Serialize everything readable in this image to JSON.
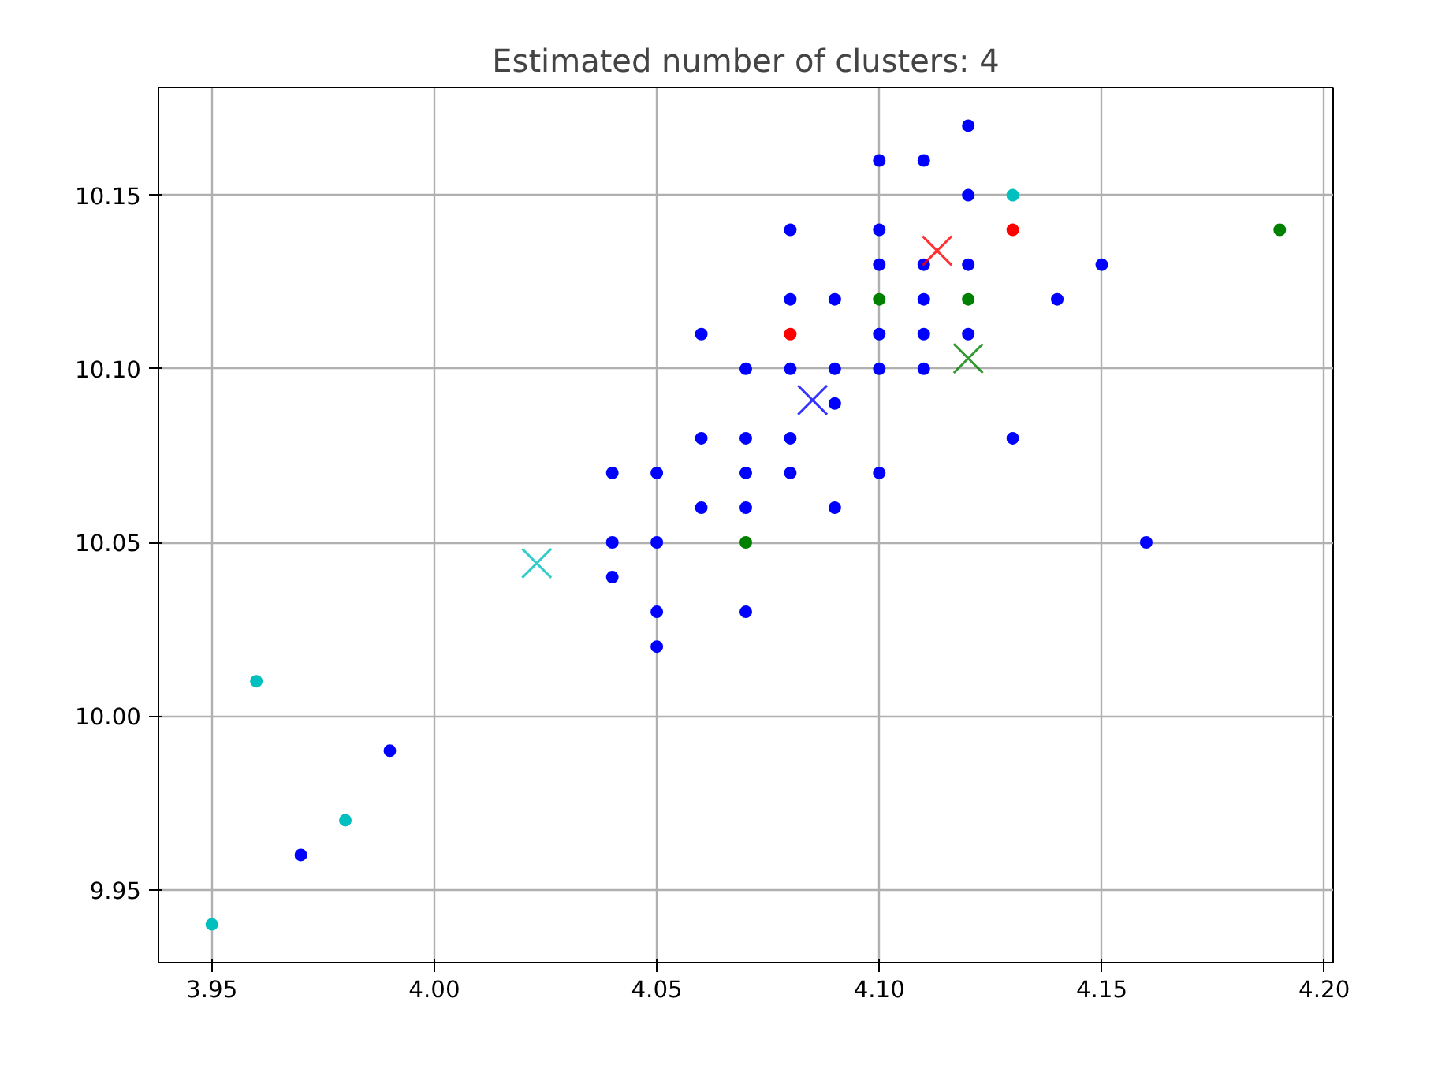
{
  "chart_data": {
    "type": "scatter",
    "title": "Estimated number of clusters: 4",
    "xlim": [
      3.938,
      4.202
    ],
    "ylim": [
      9.929,
      10.181
    ],
    "xticks": [
      {
        "value": 3.95,
        "label": "3.95"
      },
      {
        "value": 4.0,
        "label": "4.00"
      },
      {
        "value": 4.05,
        "label": "4.05"
      },
      {
        "value": 4.1,
        "label": "4.10"
      },
      {
        "value": 4.15,
        "label": "4.15"
      },
      {
        "value": 4.2,
        "label": "4.20"
      }
    ],
    "yticks": [
      {
        "value": 9.95,
        "label": "9.95"
      },
      {
        "value": 10.0,
        "label": "10.00"
      },
      {
        "value": 10.05,
        "label": "10.05"
      },
      {
        "value": 10.1,
        "label": "10.10"
      },
      {
        "value": 10.15,
        "label": "10.15"
      }
    ],
    "grid": true,
    "marker": "circle",
    "series": [
      {
        "color": "#0000ff",
        "x": [
          3.97,
          3.99,
          4.04,
          4.04,
          4.04,
          4.05,
          4.05,
          4.05,
          4.05,
          4.06,
          4.06,
          4.06,
          4.07,
          4.07,
          4.07,
          4.07,
          4.07,
          4.08,
          4.08,
          4.08,
          4.08,
          4.08,
          4.09,
          4.09,
          4.09,
          4.09,
          4.1,
          4.1,
          4.1,
          4.1,
          4.1,
          4.1,
          4.11,
          4.11,
          4.11,
          4.11,
          4.11,
          4.12,
          4.12,
          4.12,
          4.12,
          4.13,
          4.14,
          4.15,
          4.16
        ],
        "values": [
          9.96,
          9.99,
          10.07,
          10.05,
          10.04,
          10.07,
          10.05,
          10.03,
          10.02,
          10.11,
          10.08,
          10.06,
          10.1,
          10.08,
          10.07,
          10.06,
          10.03,
          10.14,
          10.12,
          10.1,
          10.08,
          10.07,
          10.12,
          10.1,
          10.09,
          10.06,
          10.16,
          10.14,
          10.13,
          10.11,
          10.1,
          10.07,
          10.16,
          10.13,
          10.12,
          10.11,
          10.1,
          10.17,
          10.15,
          10.13,
          10.11,
          10.08,
          10.12,
          10.13,
          10.05
        ]
      },
      {
        "color": "#ff0000",
        "x": [
          4.08,
          4.13
        ],
        "values": [
          10.11,
          10.14
        ]
      },
      {
        "color": "#008000",
        "x": [
          4.07,
          4.1,
          4.12,
          4.19
        ],
        "values": [
          10.05,
          10.12,
          10.12,
          10.14
        ]
      },
      {
        "color": "#00bfbf",
        "x": [
          3.95,
          3.96,
          3.98,
          4.13
        ],
        "values": [
          9.94,
          10.01,
          9.97,
          10.15
        ]
      },
      {
        "color": "#0000ff",
        "marker": "cross",
        "x": [
          4.085
        ],
        "values": [
          10.091
        ]
      },
      {
        "color": "#ff0000",
        "marker": "cross",
        "x": [
          4.113
        ],
        "values": [
          10.134
        ]
      },
      {
        "color": "#008000",
        "marker": "cross",
        "x": [
          4.12
        ],
        "values": [
          10.103
        ]
      },
      {
        "color": "#00bfbf",
        "marker": "cross",
        "x": [
          4.023
        ],
        "values": [
          10.044
        ]
      }
    ]
  }
}
